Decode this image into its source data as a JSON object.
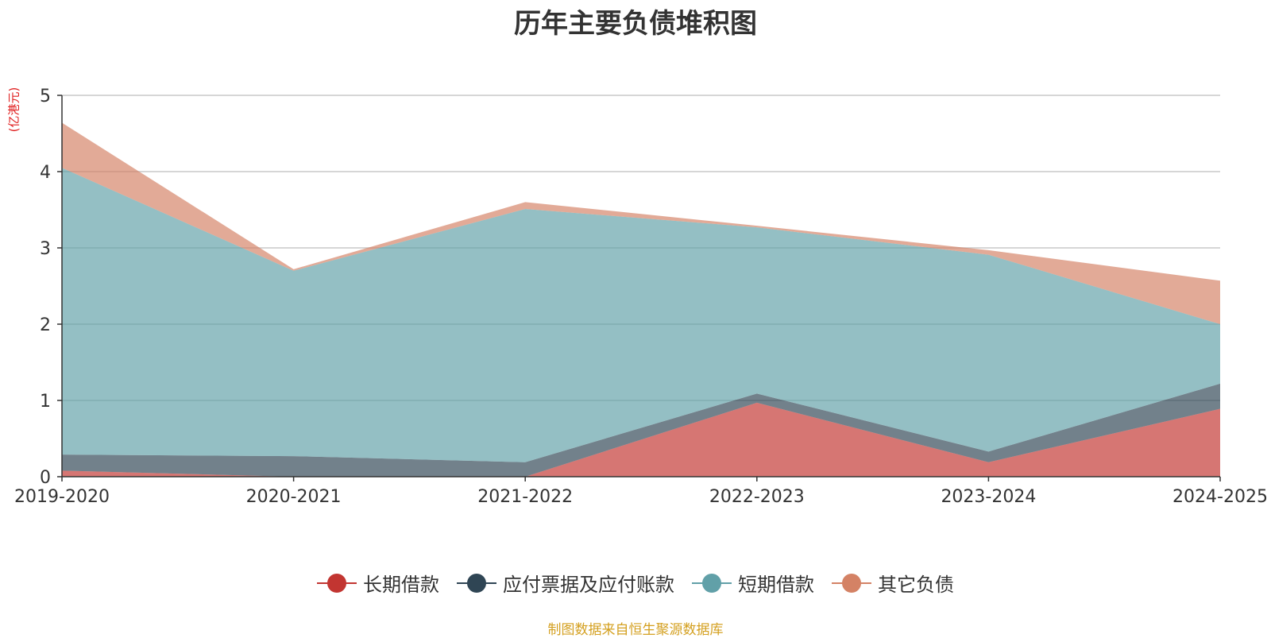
{
  "chart_data": {
    "type": "area",
    "stacked": true,
    "title": "历年主要负债堆积图",
    "unit_label": "(亿港元)",
    "categories": [
      "2019-2020",
      "2020-2021",
      "2021-2022",
      "2022-2023",
      "2023-2024",
      "2024-2025"
    ],
    "ylim": [
      0,
      5
    ],
    "yticks": [
      0,
      1,
      2,
      3,
      4,
      5
    ],
    "grid": true,
    "legend_position": "bottom",
    "series": [
      {
        "name": "长期借款",
        "color": "#c23531",
        "values": [
          0.08,
          0.0,
          0.0,
          0.97,
          0.19,
          0.89
        ]
      },
      {
        "name": "应付票据及应付账款",
        "color": "#2f4554",
        "values": [
          0.21,
          0.27,
          0.19,
          0.12,
          0.14,
          0.33
        ]
      },
      {
        "name": "短期借款",
        "color": "#61a0a8",
        "values": [
          3.76,
          2.43,
          3.32,
          2.18,
          2.58,
          0.78
        ]
      },
      {
        "name": "其它负债",
        "color": "#d48265",
        "values": [
          0.59,
          0.02,
          0.09,
          0.02,
          0.06,
          0.57
        ]
      }
    ]
  },
  "footer": {
    "source": "制图数据来自恒生聚源数据库"
  }
}
